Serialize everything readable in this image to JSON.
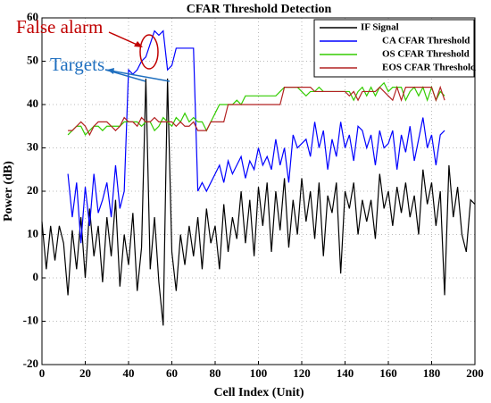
{
  "chart_data": {
    "type": "line",
    "title": "CFAR Threshold Detection",
    "x_label": "Cell Index (Unit)",
    "y_label": "Power (dB)",
    "annotations": [
      "False alarm",
      "Targets"
    ],
    "xlim": [
      0,
      200
    ],
    "xticks": [
      0,
      20,
      40,
      60,
      80,
      100,
      120,
      140,
      160,
      180,
      200
    ],
    "ylim": [
      -20,
      60
    ],
    "yticks": [
      -20,
      -10,
      0,
      10,
      20,
      30,
      40,
      50,
      60
    ],
    "grid": true,
    "legend": "upper right",
    "x": [
      0,
      2,
      4,
      6,
      8,
      10,
      12,
      14,
      16,
      18,
      20,
      22,
      24,
      26,
      28,
      30,
      32,
      34,
      36,
      38,
      40,
      42,
      44,
      46,
      48,
      50,
      52,
      54,
      56,
      58,
      60,
      62,
      64,
      66,
      68,
      70,
      72,
      74,
      76,
      78,
      80,
      82,
      84,
      86,
      88,
      90,
      92,
      94,
      96,
      98,
      100,
      102,
      104,
      106,
      108,
      110,
      112,
      114,
      116,
      118,
      120,
      122,
      124,
      126,
      128,
      130,
      132,
      134,
      136,
      138,
      140,
      142,
      144,
      146,
      148,
      150,
      152,
      154,
      156,
      158,
      160,
      162,
      164,
      166,
      168,
      170,
      172,
      174,
      176,
      178,
      180,
      182,
      184,
      186,
      188,
      190,
      192,
      194,
      196,
      198,
      200
    ],
    "series": [
      {
        "name": "IF Signal",
        "color": "#000000",
        "values": [
          13,
          2,
          12,
          4,
          12,
          8,
          -4,
          11,
          2,
          14,
          0,
          16,
          5,
          12,
          -1,
          14,
          5,
          18,
          -2,
          10,
          3,
          15,
          -3,
          7,
          46,
          2,
          14,
          -1,
          -11,
          46,
          6,
          -3,
          10,
          3,
          12,
          5,
          14,
          2,
          16,
          8,
          12,
          2,
          17,
          6,
          14,
          9,
          20,
          8,
          18,
          5,
          21,
          12,
          22,
          6,
          20,
          11,
          23,
          7,
          18,
          10,
          23,
          13,
          20,
          9,
          22,
          5,
          19,
          15,
          22,
          1,
          20,
          16,
          22,
          10,
          18,
          13,
          18,
          9,
          24,
          16,
          20,
          12,
          21,
          15,
          22,
          14,
          19,
          10,
          25,
          17,
          22,
          12,
          20,
          -4,
          26,
          14,
          21,
          10,
          6,
          18,
          17
        ]
      },
      {
        "name": "CA CFAR Threshold",
        "color": "#0000ff",
        "values": [
          null,
          null,
          null,
          null,
          null,
          null,
          24,
          14,
          22,
          8,
          21,
          12,
          24,
          15,
          18,
          22,
          14,
          26,
          16,
          20,
          48,
          47,
          48,
          50,
          51,
          54,
          57,
          56,
          57,
          48,
          49,
          53,
          53,
          53,
          53,
          53,
          20,
          22,
          20,
          22,
          24,
          26,
          22,
          27,
          24,
          26,
          28,
          23,
          27,
          25,
          30,
          26,
          28,
          25,
          32,
          26,
          30,
          22,
          33,
          30,
          31,
          32,
          28,
          36,
          30,
          34,
          25,
          32,
          28,
          36,
          30,
          33,
          27,
          35,
          34,
          30,
          33,
          26,
          34,
          30,
          31,
          34,
          25,
          33,
          29,
          35,
          27,
          32,
          37,
          30,
          33,
          26,
          33,
          34,
          null,
          null,
          null,
          null,
          null,
          null,
          null
        ]
      },
      {
        "name": "OS CFAR Threshold",
        "color": "#33cc00",
        "values": [
          null,
          null,
          null,
          null,
          null,
          null,
          33,
          34,
          35,
          35,
          33,
          34,
          35,
          35,
          34,
          35,
          35,
          35,
          35,
          36,
          36,
          36,
          36,
          35,
          36,
          36,
          34,
          35,
          37,
          36,
          35,
          37,
          36,
          38,
          36,
          37,
          36,
          36,
          34,
          36,
          38,
          40,
          40,
          40,
          40,
          41,
          40,
          42,
          42,
          42,
          42,
          42,
          42,
          42,
          42,
          43,
          44,
          44,
          44,
          44,
          43,
          42,
          43,
          43,
          44,
          43,
          43,
          43,
          43,
          43,
          43,
          43,
          41,
          43,
          44,
          42,
          44,
          42,
          44,
          45,
          43,
          44,
          44,
          44,
          41,
          43,
          44,
          42,
          44,
          41,
          44,
          41,
          43,
          42,
          null,
          null,
          null,
          null,
          null,
          null,
          null
        ]
      },
      {
        "name": "EOS CFAR Threshold",
        "color": "#b22222",
        "values": [
          null,
          null,
          null,
          null,
          null,
          null,
          34,
          34,
          35,
          36,
          35,
          33,
          35,
          36,
          36,
          36,
          35,
          34,
          35,
          37,
          36,
          36,
          35,
          37,
          36,
          36,
          37,
          36,
          36,
          36,
          36,
          35,
          36,
          35,
          35,
          36,
          34,
          34,
          34,
          36,
          36,
          36,
          36,
          40,
          40,
          40,
          40,
          40,
          40,
          40,
          40,
          40,
          40,
          40,
          40,
          40,
          44,
          44,
          44,
          44,
          44,
          44,
          44,
          43,
          43,
          43,
          43,
          43,
          43,
          43,
          43,
          42,
          43,
          41,
          43,
          43,
          43,
          43,
          44,
          43,
          42,
          41,
          44,
          41,
          44,
          44,
          44,
          44,
          44,
          44,
          44,
          41,
          44,
          41,
          null,
          null,
          null,
          null,
          null,
          null,
          null
        ]
      }
    ]
  }
}
